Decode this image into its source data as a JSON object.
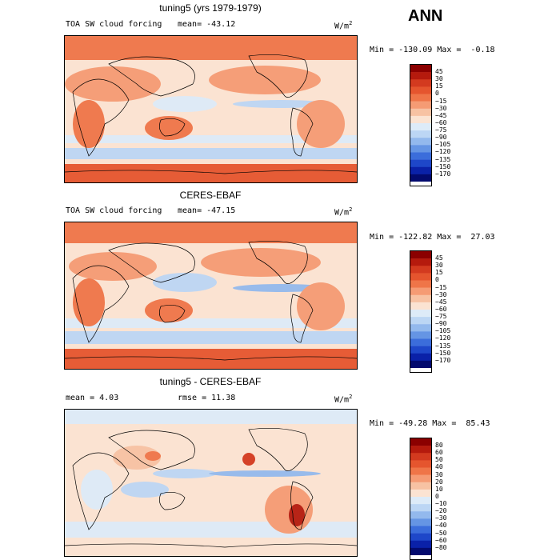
{
  "season": "ANN",
  "panels": [
    {
      "title": "tuning5 (yrs 1979-1979)",
      "variable": "TOA SW cloud forcing",
      "stat1": "mean= -43.12",
      "stat2": "",
      "units": "W/m",
      "units_sup": "2",
      "minmax": "Min = -130.09 Max =  -0.18",
      "levels": [
        "45",
        "30",
        "15",
        "0",
        "−15",
        "−30",
        "−45",
        "−60",
        "−75",
        "−90",
        "−105",
        "−120",
        "−135",
        "−150",
        "−170"
      ],
      "colors": [
        "#8b0000",
        "#b51a0d",
        "#d33a1f",
        "#e5552e",
        "#ef7548",
        "#f59b74",
        "#f7c2a3",
        "#fbe3d2",
        "#ddebf8",
        "#bcd6f4",
        "#93b9ed",
        "#6595e4",
        "#3b6ddb",
        "#1e47c9",
        "#0a21a8",
        "#030a6e"
      ]
    },
    {
      "title": "CERES-EBAF",
      "variable": "TOA SW cloud forcing",
      "stat1": "mean= -47.15",
      "stat2": "",
      "units": "W/m",
      "units_sup": "2",
      "minmax": "Min = -122.82 Max =  27.03",
      "levels": [
        "45",
        "30",
        "15",
        "0",
        "−15",
        "−30",
        "−45",
        "−60",
        "−75",
        "−90",
        "−105",
        "−120",
        "−135",
        "−150",
        "−170"
      ],
      "colors": [
        "#8b0000",
        "#b51a0d",
        "#d33a1f",
        "#e5552e",
        "#ef7548",
        "#f59b74",
        "#f7c2a3",
        "#fbe3d2",
        "#ddebf8",
        "#bcd6f4",
        "#93b9ed",
        "#6595e4",
        "#3b6ddb",
        "#1e47c9",
        "#0a21a8",
        "#030a6e"
      ]
    },
    {
      "title": "tuning5 - CERES-EBAF",
      "variable": "",
      "stat1": "mean =   4.03",
      "stat2": "rmse =  11.38",
      "units": "W/m",
      "units_sup": "2",
      "minmax": "Min = -49.28 Max =  85.43",
      "levels": [
        "80",
        "60",
        "50",
        "40",
        "30",
        "20",
        "10",
        "0",
        "−10",
        "−20",
        "−30",
        "−40",
        "−50",
        "−60",
        "−80"
      ],
      "colors": [
        "#8b0000",
        "#b51a0d",
        "#d33a1f",
        "#e5552e",
        "#ef7548",
        "#f59b74",
        "#f7c2a3",
        "#fbe3d2",
        "#ddebf8",
        "#bcd6f4",
        "#93b9ed",
        "#6595e4",
        "#3b6ddb",
        "#1e47c9",
        "#0a21a8",
        "#030a6e"
      ]
    }
  ]
}
